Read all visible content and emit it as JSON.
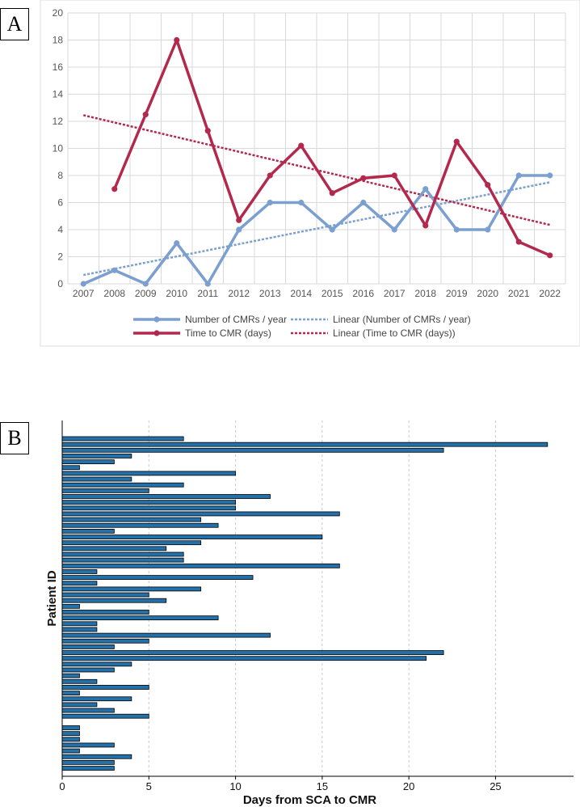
{
  "chart_data": [
    {
      "panel": "A",
      "type": "line",
      "x": [
        "2007",
        "2008",
        "2009",
        "2010",
        "2011",
        "2012",
        "2013",
        "2014",
        "2015",
        "2016",
        "2017",
        "2018",
        "2019",
        "2020",
        "2021",
        "2022"
      ],
      "ylim": [
        0,
        20
      ],
      "yticks": [
        "0",
        "2",
        "4",
        "6",
        "8",
        "10",
        "12",
        "14",
        "16",
        "18",
        "20"
      ],
      "series": [
        {
          "name": "Number of CMRs / year",
          "color": "#7b9fcf",
          "values": [
            0,
            1,
            0,
            3,
            0,
            4,
            6,
            6,
            4,
            6,
            4,
            7,
            4,
            4,
            8,
            8
          ]
        },
        {
          "name": "Time to CMR (days)",
          "color": "#b3294e",
          "values": [
            null,
            7,
            12.5,
            18,
            11.3,
            4.7,
            8,
            10.2,
            6.7,
            7.8,
            8,
            4.3,
            10.5,
            7.3,
            3.1,
            2.1
          ]
        }
      ],
      "trendlines": [
        {
          "name": "Linear (Number of CMRs / year)",
          "color": "#7b9fcf",
          "start": 0.65,
          "end": 7.5
        },
        {
          "name": "Linear (Time to CMR (days))",
          "color": "#b3294e",
          "start": 12.45,
          "end": 4.35
        }
      ],
      "legend": [
        "Number of CMRs / year",
        "Linear (Number of CMRs / year)",
        "Time to CMR (days)",
        "Linear (Time to CMR (days))"
      ]
    },
    {
      "panel": "B",
      "type": "bar",
      "orientation": "horizontal",
      "xlabel": "Days from SCA to CMR",
      "ylabel": "Patient ID",
      "xlim": [
        0,
        29.5
      ],
      "xticks": [
        "0",
        "5",
        "10",
        "15",
        "20",
        "25"
      ],
      "bar_color": "#2470a8",
      "values": [
        7,
        28,
        22,
        4,
        3,
        1,
        10,
        4,
        7,
        5,
        12,
        10,
        10,
        16,
        8,
        9,
        3,
        15,
        8,
        6,
        7,
        7,
        16,
        2,
        11,
        2,
        8,
        5,
        6,
        1,
        5,
        9,
        2,
        2,
        12,
        5,
        3,
        22,
        21,
        4,
        3,
        1,
        2,
        5,
        1,
        4,
        2,
        3,
        5,
        0,
        1,
        1,
        1,
        3,
        1,
        4,
        3,
        3
      ]
    }
  ],
  "labels": {
    "panel_a": "A",
    "panel_b": "B"
  }
}
